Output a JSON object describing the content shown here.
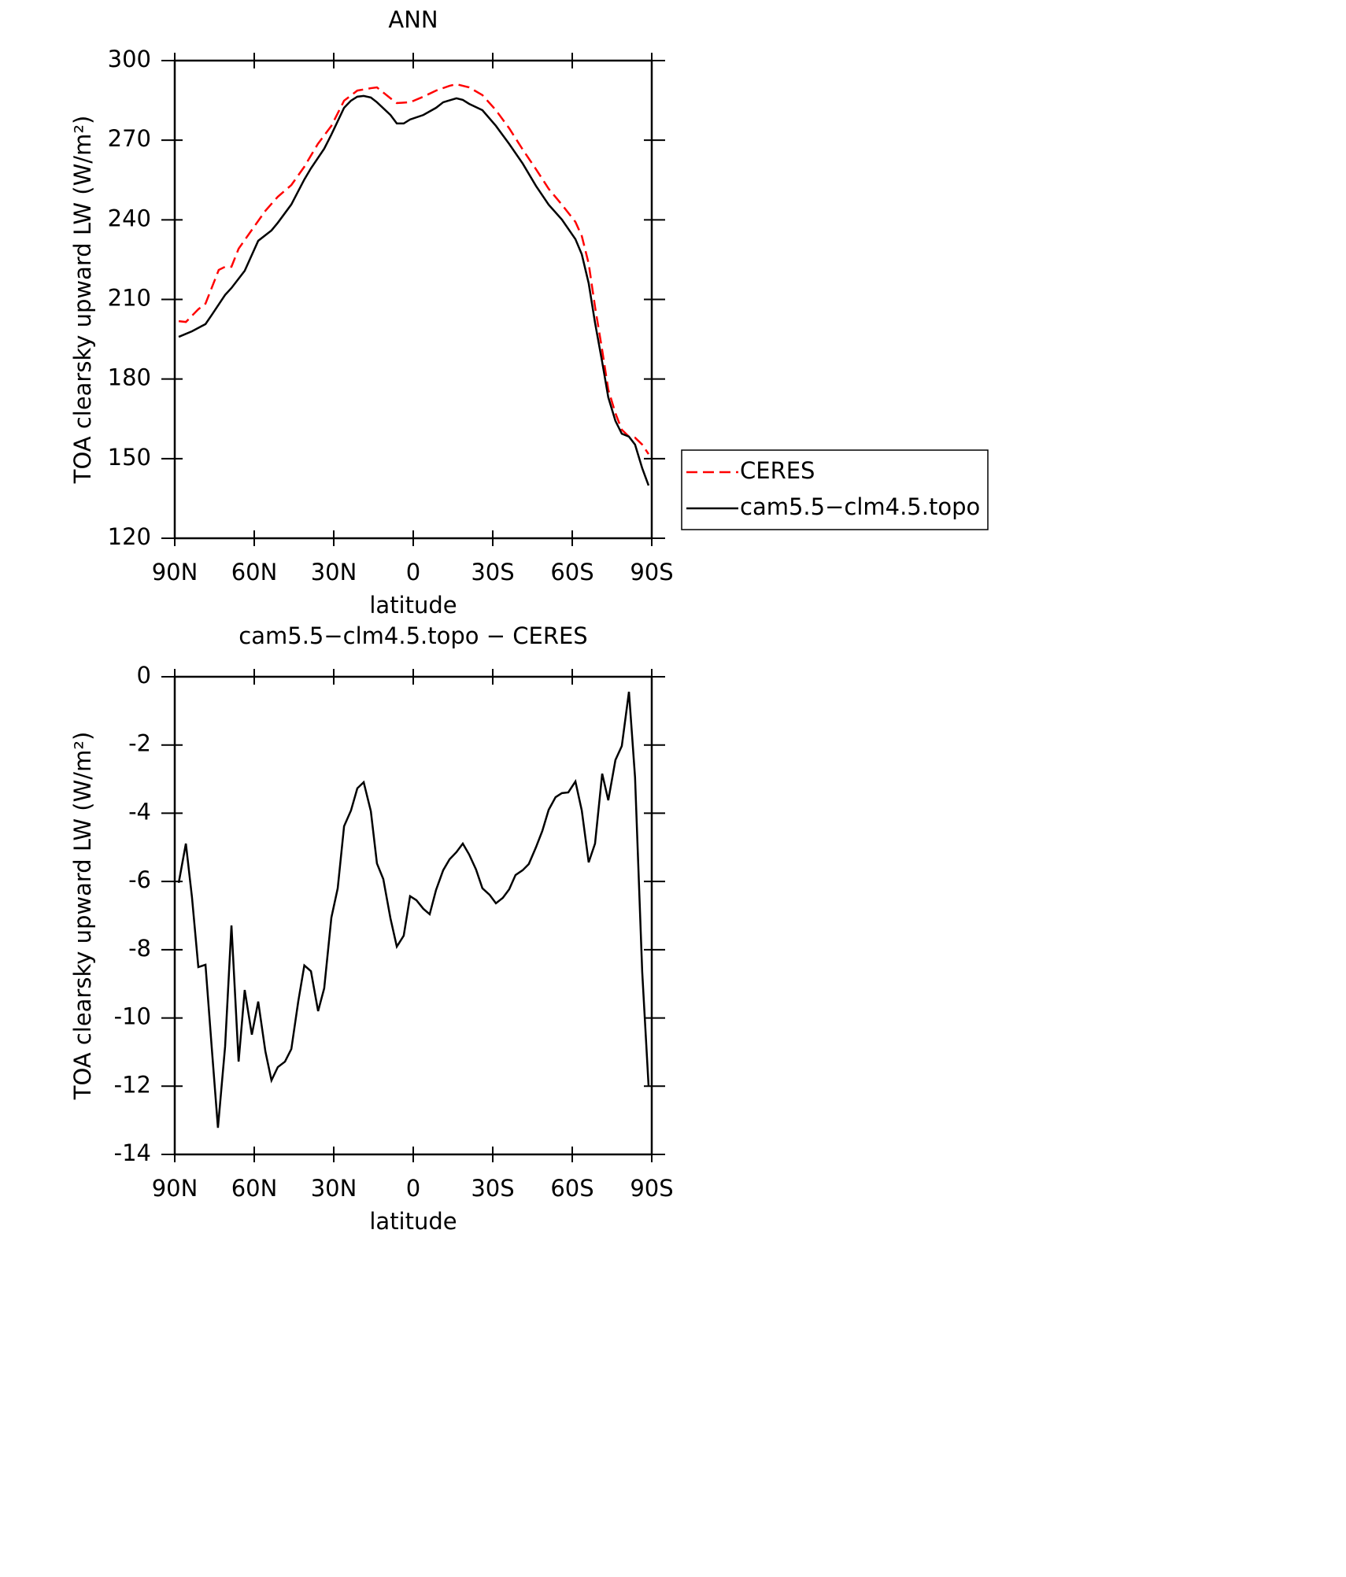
{
  "chart_data": [
    {
      "type": "line",
      "title": "ANN",
      "x_label": "latitude",
      "y_label": "TOA clearsky upward LW (W/m²)",
      "xlim": [
        90,
        -90
      ],
      "xticks": [
        {
          "value": 90,
          "label": "90N"
        },
        {
          "value": 60,
          "label": "60N"
        },
        {
          "value": 30,
          "label": "30N"
        },
        0,
        {
          "value": -30,
          "label": "30S"
        },
        {
          "value": -60,
          "label": "60S"
        },
        {
          "value": -90,
          "label": "90S"
        }
      ],
      "ylim": [
        120,
        300
      ],
      "yticks": [
        120,
        150,
        180,
        210,
        240,
        270,
        300
      ],
      "legend": "outside-right",
      "series": [
        {
          "name": "CERES",
          "color": "#ff0000",
          "dash": true,
          "x": [
            88.5,
            85.8,
            81.1,
            78.4,
            73.4,
            71.0,
            68.6,
            65.9,
            60.9,
            55.8,
            51.1,
            46.0,
            41.1,
            36.0,
            30.9,
            26.1,
            21.1,
            16.0,
            13.7,
            8.6,
            6.2,
            1.2,
            -3.8,
            -8.6,
            -13.7,
            -16.3,
            -21.1,
            -26.1,
            -31.2,
            -36.2,
            -41.3,
            -46.3,
            -51.1,
            -56.1,
            -61.2,
            -63.6,
            -66.2,
            -68.6,
            -71.3,
            -73.6,
            -76.3,
            -78.7,
            -81.4,
            -83.7,
            -86.4,
            -88.8
          ],
          "values": [
            201.8,
            201.5,
            206.3,
            208.4,
            221.1,
            222.3,
            222.3,
            229.1,
            236.2,
            243.4,
            248.7,
            253.1,
            260.0,
            268.6,
            275.4,
            284.9,
            288.7,
            289.6,
            289.9,
            285.8,
            284.0,
            284.3,
            286.4,
            288.7,
            290.5,
            291.1,
            289.9,
            287.0,
            281.3,
            274.5,
            266.5,
            259.1,
            251.7,
            245.7,
            239.2,
            233.9,
            223.5,
            207.2,
            190.9,
            176.0,
            167.1,
            160.9,
            158.3,
            157.9,
            155.3,
            151.7
          ]
        },
        {
          "name": "cam5.5−clm4.5.topo",
          "color": "#000000",
          "dash": false,
          "x": [
            88.5,
            83.5,
            78.4,
            76.0,
            71.0,
            68.6,
            63.6,
            58.5,
            53.5,
            51.1,
            46.0,
            41.1,
            38.6,
            33.6,
            30.9,
            26.1,
            23.5,
            21.1,
            18.7,
            16.0,
            13.7,
            8.6,
            6.2,
            3.6,
            1.2,
            -3.8,
            -8.6,
            -11.3,
            -16.3,
            -18.7,
            -21.1,
            -26.1,
            -31.2,
            -36.2,
            -41.3,
            -46.3,
            -51.1,
            -56.1,
            -61.2,
            -63.6,
            -66.2,
            -68.6,
            -71.3,
            -73.6,
            -76.3,
            -78.7,
            -81.4,
            -83.7,
            -86.4,
            -88.8
          ],
          "values": [
            195.9,
            198.0,
            200.7,
            204.2,
            211.7,
            214.3,
            220.8,
            232.1,
            236.0,
            238.9,
            245.8,
            255.2,
            259.4,
            266.8,
            272.1,
            282.2,
            284.9,
            286.4,
            286.7,
            286.1,
            284.3,
            279.5,
            276.3,
            276.3,
            277.8,
            279.5,
            282.2,
            284.3,
            285.8,
            285.2,
            283.7,
            281.3,
            275.4,
            268.6,
            261.2,
            252.8,
            245.7,
            240.1,
            232.7,
            227.0,
            216.1,
            201.2,
            186.4,
            173.1,
            164.2,
            159.4,
            158.3,
            155.3,
            146.4,
            139.9
          ]
        }
      ]
    },
    {
      "type": "line",
      "title": "cam5.5−clm4.5.topo − CERES",
      "x_label": "latitude",
      "y_label": "TOA clearsky upward LW (W/m²)",
      "xlim": [
        90,
        -90
      ],
      "xticks": [
        {
          "value": 90,
          "label": "90N"
        },
        {
          "value": 60,
          "label": "60N"
        },
        {
          "value": 30,
          "label": "30N"
        },
        0,
        {
          "value": -30,
          "label": "30S"
        },
        {
          "value": -60,
          "label": "60S"
        },
        {
          "value": -90,
          "label": "90S"
        }
      ],
      "ylim": [
        -14,
        0
      ],
      "yticks": [
        -14,
        -12,
        -10,
        -8,
        -6,
        -4,
        -2,
        0
      ],
      "series": [
        {
          "color": "#000000",
          "dash": false,
          "x": [
            88.5,
            85.8,
            83.5,
            81.1,
            78.4,
            76.0,
            73.7,
            71.0,
            68.6,
            65.9,
            63.6,
            60.9,
            58.5,
            55.8,
            53.5,
            51.1,
            48.4,
            46.0,
            43.4,
            41.1,
            38.6,
            35.9,
            33.6,
            30.9,
            28.5,
            26.1,
            23.5,
            21.1,
            18.7,
            16.0,
            13.7,
            11.3,
            8.6,
            6.2,
            3.6,
            1.2,
            -1.2,
            -3.8,
            -6.2,
            -8.6,
            -11.3,
            -13.7,
            -16.3,
            -18.7,
            -21.1,
            -23.7,
            -26.1,
            -28.8,
            -31.2,
            -33.8,
            -36.2,
            -38.6,
            -41.3,
            -43.6,
            -46.3,
            -48.7,
            -51.1,
            -53.7,
            -56.1,
            -58.5,
            -61.2,
            -63.6,
            -66.2,
            -68.6,
            -71.3,
            -73.6,
            -76.3,
            -78.7,
            -81.4,
            -83.7,
            -86.4,
            -88.8
          ],
          "values": [
            -6.04,
            -4.89,
            -6.46,
            -8.51,
            -8.44,
            -10.91,
            -13.22,
            -10.84,
            -7.29,
            -11.28,
            -9.18,
            -10.49,
            -9.52,
            -10.98,
            -11.83,
            -11.44,
            -11.28,
            -10.91,
            -9.52,
            -8.46,
            -8.63,
            -9.8,
            -9.13,
            -7.06,
            -6.2,
            -4.38,
            -3.92,
            -3.27,
            -3.09,
            -3.94,
            -5.47,
            -5.93,
            -7.08,
            -7.91,
            -7.59,
            -6.43,
            -6.55,
            -6.8,
            -6.96,
            -6.25,
            -5.67,
            -5.35,
            -5.14,
            -4.89,
            -5.21,
            -5.65,
            -6.2,
            -6.39,
            -6.64,
            -6.48,
            -6.23,
            -5.81,
            -5.67,
            -5.49,
            -5.0,
            -4.52,
            -3.9,
            -3.53,
            -3.41,
            -3.39,
            -3.07,
            -3.92,
            -5.44,
            -4.89,
            -2.84,
            -3.62,
            -2.44,
            -2.03,
            -0.44,
            -2.95,
            -8.65,
            -11.99
          ]
        }
      ]
    }
  ]
}
